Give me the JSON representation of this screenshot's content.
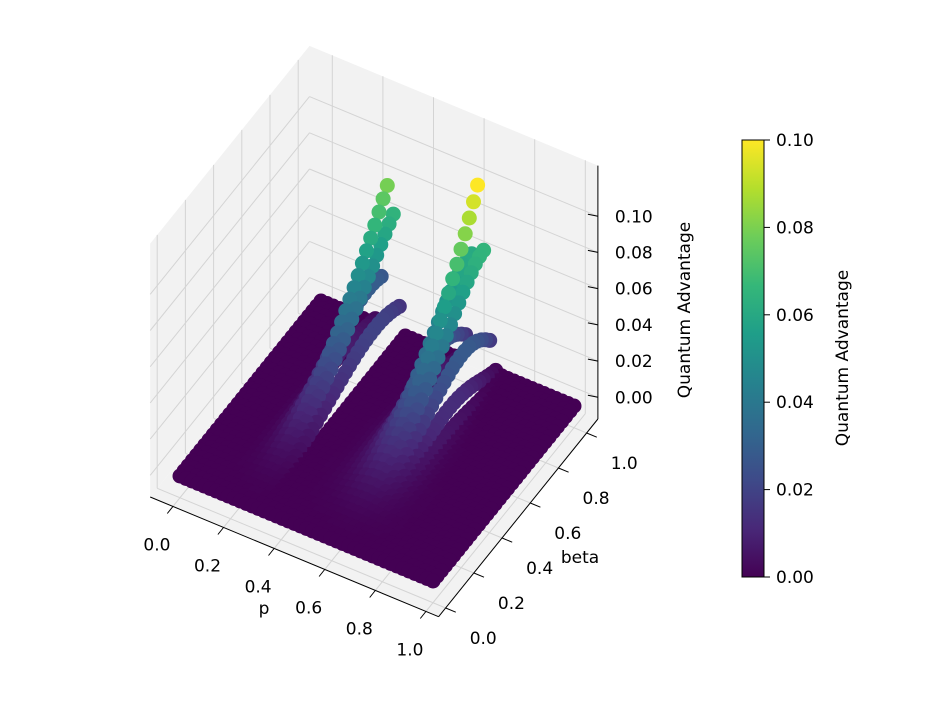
{
  "chart_data": {
    "type": "scatter3d",
    "x_axis": {
      "label": "p",
      "range": [
        0,
        1
      ],
      "ticks": [
        "0.0",
        "0.2",
        "0.4",
        "0.6",
        "0.8",
        "1.0"
      ]
    },
    "y_axis": {
      "label": "beta",
      "range": [
        0,
        1
      ],
      "ticks": [
        "0.0",
        "0.2",
        "0.4",
        "0.6",
        "0.8",
        "1.0"
      ]
    },
    "z_axis": {
      "label": "Quantum Advantage",
      "range": [
        0,
        0.1
      ],
      "ticks": [
        "0.00",
        "0.02",
        "0.04",
        "0.06",
        "0.08",
        "0.10"
      ]
    },
    "colorbar": {
      "label": "Quantum Advantage",
      "colormap": "viridis",
      "range": [
        0,
        0.1
      ],
      "ticks": [
        "0.00",
        "0.02",
        "0.04",
        "0.06",
        "0.08",
        "0.10"
      ]
    },
    "surface": {
      "description_of_shape": "two ridges rising from a flat zero plane",
      "peaks": [
        {
          "p": 0.27,
          "beta": 0.95,
          "value": 0.085
        },
        {
          "p": 0.62,
          "beta": 0.95,
          "value": 0.1
        }
      ]
    },
    "grid": true,
    "colors": {
      "pane": "#f2f2f2",
      "grid": "#d4d4d4",
      "low": "#440154",
      "high": "#fde725"
    }
  }
}
